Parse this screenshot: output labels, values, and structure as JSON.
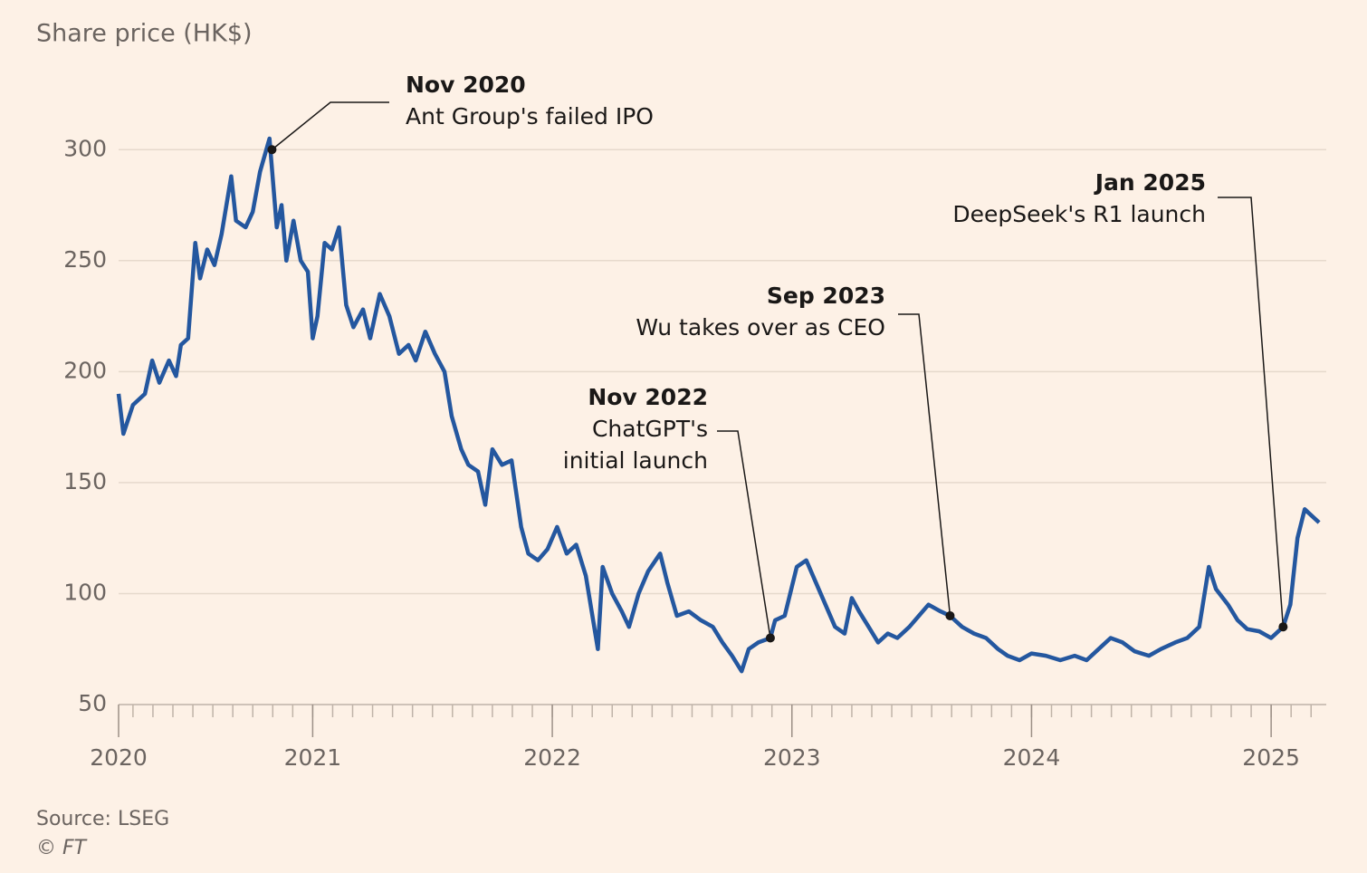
{
  "chart_data": {
    "type": "line",
    "y_label": "Share price (HK$)",
    "source": "Source: LSEG",
    "credit": "© FT",
    "color": "#24579f",
    "xlim": [
      2020.19,
      2025.23
    ],
    "xticks": [
      {
        "value": 2020.19,
        "label": "2020"
      },
      2021,
      2022,
      2023,
      2024,
      2025
    ],
    "ylim": [
      50,
      305
    ],
    "yticks": [
      50,
      100,
      150,
      200,
      250,
      300
    ],
    "grid": true,
    "x": [
      2020.19,
      2020.21,
      2020.25,
      2020.3,
      2020.33,
      2020.36,
      2020.4,
      2020.43,
      2020.45,
      2020.48,
      2020.51,
      2020.53,
      2020.56,
      2020.59,
      2020.62,
      2020.66,
      2020.68,
      2020.72,
      2020.75,
      2020.78,
      2020.82,
      2020.85,
      2020.87,
      2020.89,
      2020.92,
      2020.95,
      2020.98,
      2021.0,
      2021.02,
      2021.05,
      2021.08,
      2021.11,
      2021.14,
      2021.17,
      2021.21,
      2021.24,
      2021.28,
      2021.32,
      2021.36,
      2021.4,
      2021.43,
      2021.47,
      2021.51,
      2021.55,
      2021.58,
      2021.62,
      2021.65,
      2021.69,
      2021.72,
      2021.75,
      2021.79,
      2021.83,
      2021.87,
      2021.9,
      2021.94,
      2021.98,
      2022.02,
      2022.06,
      2022.1,
      2022.14,
      2022.19,
      2022.21,
      2022.25,
      2022.29,
      2022.32,
      2022.36,
      2022.4,
      2022.45,
      2022.48,
      2022.52,
      2022.57,
      2022.62,
      2022.67,
      2022.71,
      2022.75,
      2022.79,
      2022.82,
      2022.86,
      2022.91,
      2022.93,
      2022.97,
      2023.02,
      2023.06,
      2023.1,
      2023.14,
      2023.18,
      2023.22,
      2023.25,
      2023.28,
      2023.32,
      2023.36,
      2023.4,
      2023.44,
      2023.49,
      2023.53,
      2023.57,
      2023.62,
      2023.66,
      2023.71,
      2023.76,
      2023.81,
      2023.86,
      2023.9,
      2023.95,
      2024.0,
      2024.06,
      2024.12,
      2024.18,
      2024.23,
      2024.28,
      2024.33,
      2024.38,
      2024.43,
      2024.49,
      2024.54,
      2024.6,
      2024.65,
      2024.7,
      2024.74,
      2024.77,
      2024.82,
      2024.86,
      2024.9,
      2024.95,
      2025.0,
      2025.05,
      2025.08,
      2025.11,
      2025.14,
      2025.17,
      2025.2
    ],
    "values": [
      190,
      172,
      185,
      190,
      205,
      195,
      205,
      198,
      212,
      215,
      258,
      242,
      255,
      248,
      262,
      288,
      268,
      265,
      272,
      290,
      305,
      265,
      275,
      250,
      268,
      250,
      245,
      215,
      225,
      258,
      255,
      265,
      230,
      220,
      228,
      215,
      235,
      225,
      208,
      212,
      205,
      218,
      208,
      200,
      180,
      165,
      158,
      155,
      140,
      165,
      158,
      160,
      130,
      118,
      115,
      120,
      130,
      118,
      122,
      108,
      75,
      112,
      100,
      92,
      85,
      100,
      110,
      118,
      105,
      90,
      92,
      88,
      85,
      78,
      72,
      65,
      75,
      78,
      80,
      88,
      90,
      112,
      115,
      105,
      95,
      85,
      82,
      98,
      92,
      85,
      78,
      82,
      80,
      85,
      90,
      95,
      92,
      90,
      85,
      82,
      80,
      75,
      72,
      70,
      73,
      72,
      70,
      72,
      70,
      75,
      80,
      78,
      74,
      72,
      75,
      78,
      80,
      85,
      112,
      102,
      95,
      88,
      84,
      83,
      80,
      85,
      95,
      125,
      138,
      135,
      132
    ],
    "annotations": [
      {
        "label": "Nov 2020",
        "lines": [
          "Ant Group's failed IPO"
        ],
        "x": 2020.83,
        "y": 300
      },
      {
        "label": "Nov 2022",
        "lines": [
          "ChatGPT's",
          "initial launch"
        ],
        "x": 2022.91,
        "y": 80
      },
      {
        "label": "Sep 2023",
        "lines": [
          "Wu takes over as CEO"
        ],
        "x": 2023.66,
        "y": 90
      },
      {
        "label": "Jan 2025",
        "lines": [
          "DeepSeek's R1 launch"
        ],
        "x": 2025.05,
        "y": 85
      }
    ]
  }
}
